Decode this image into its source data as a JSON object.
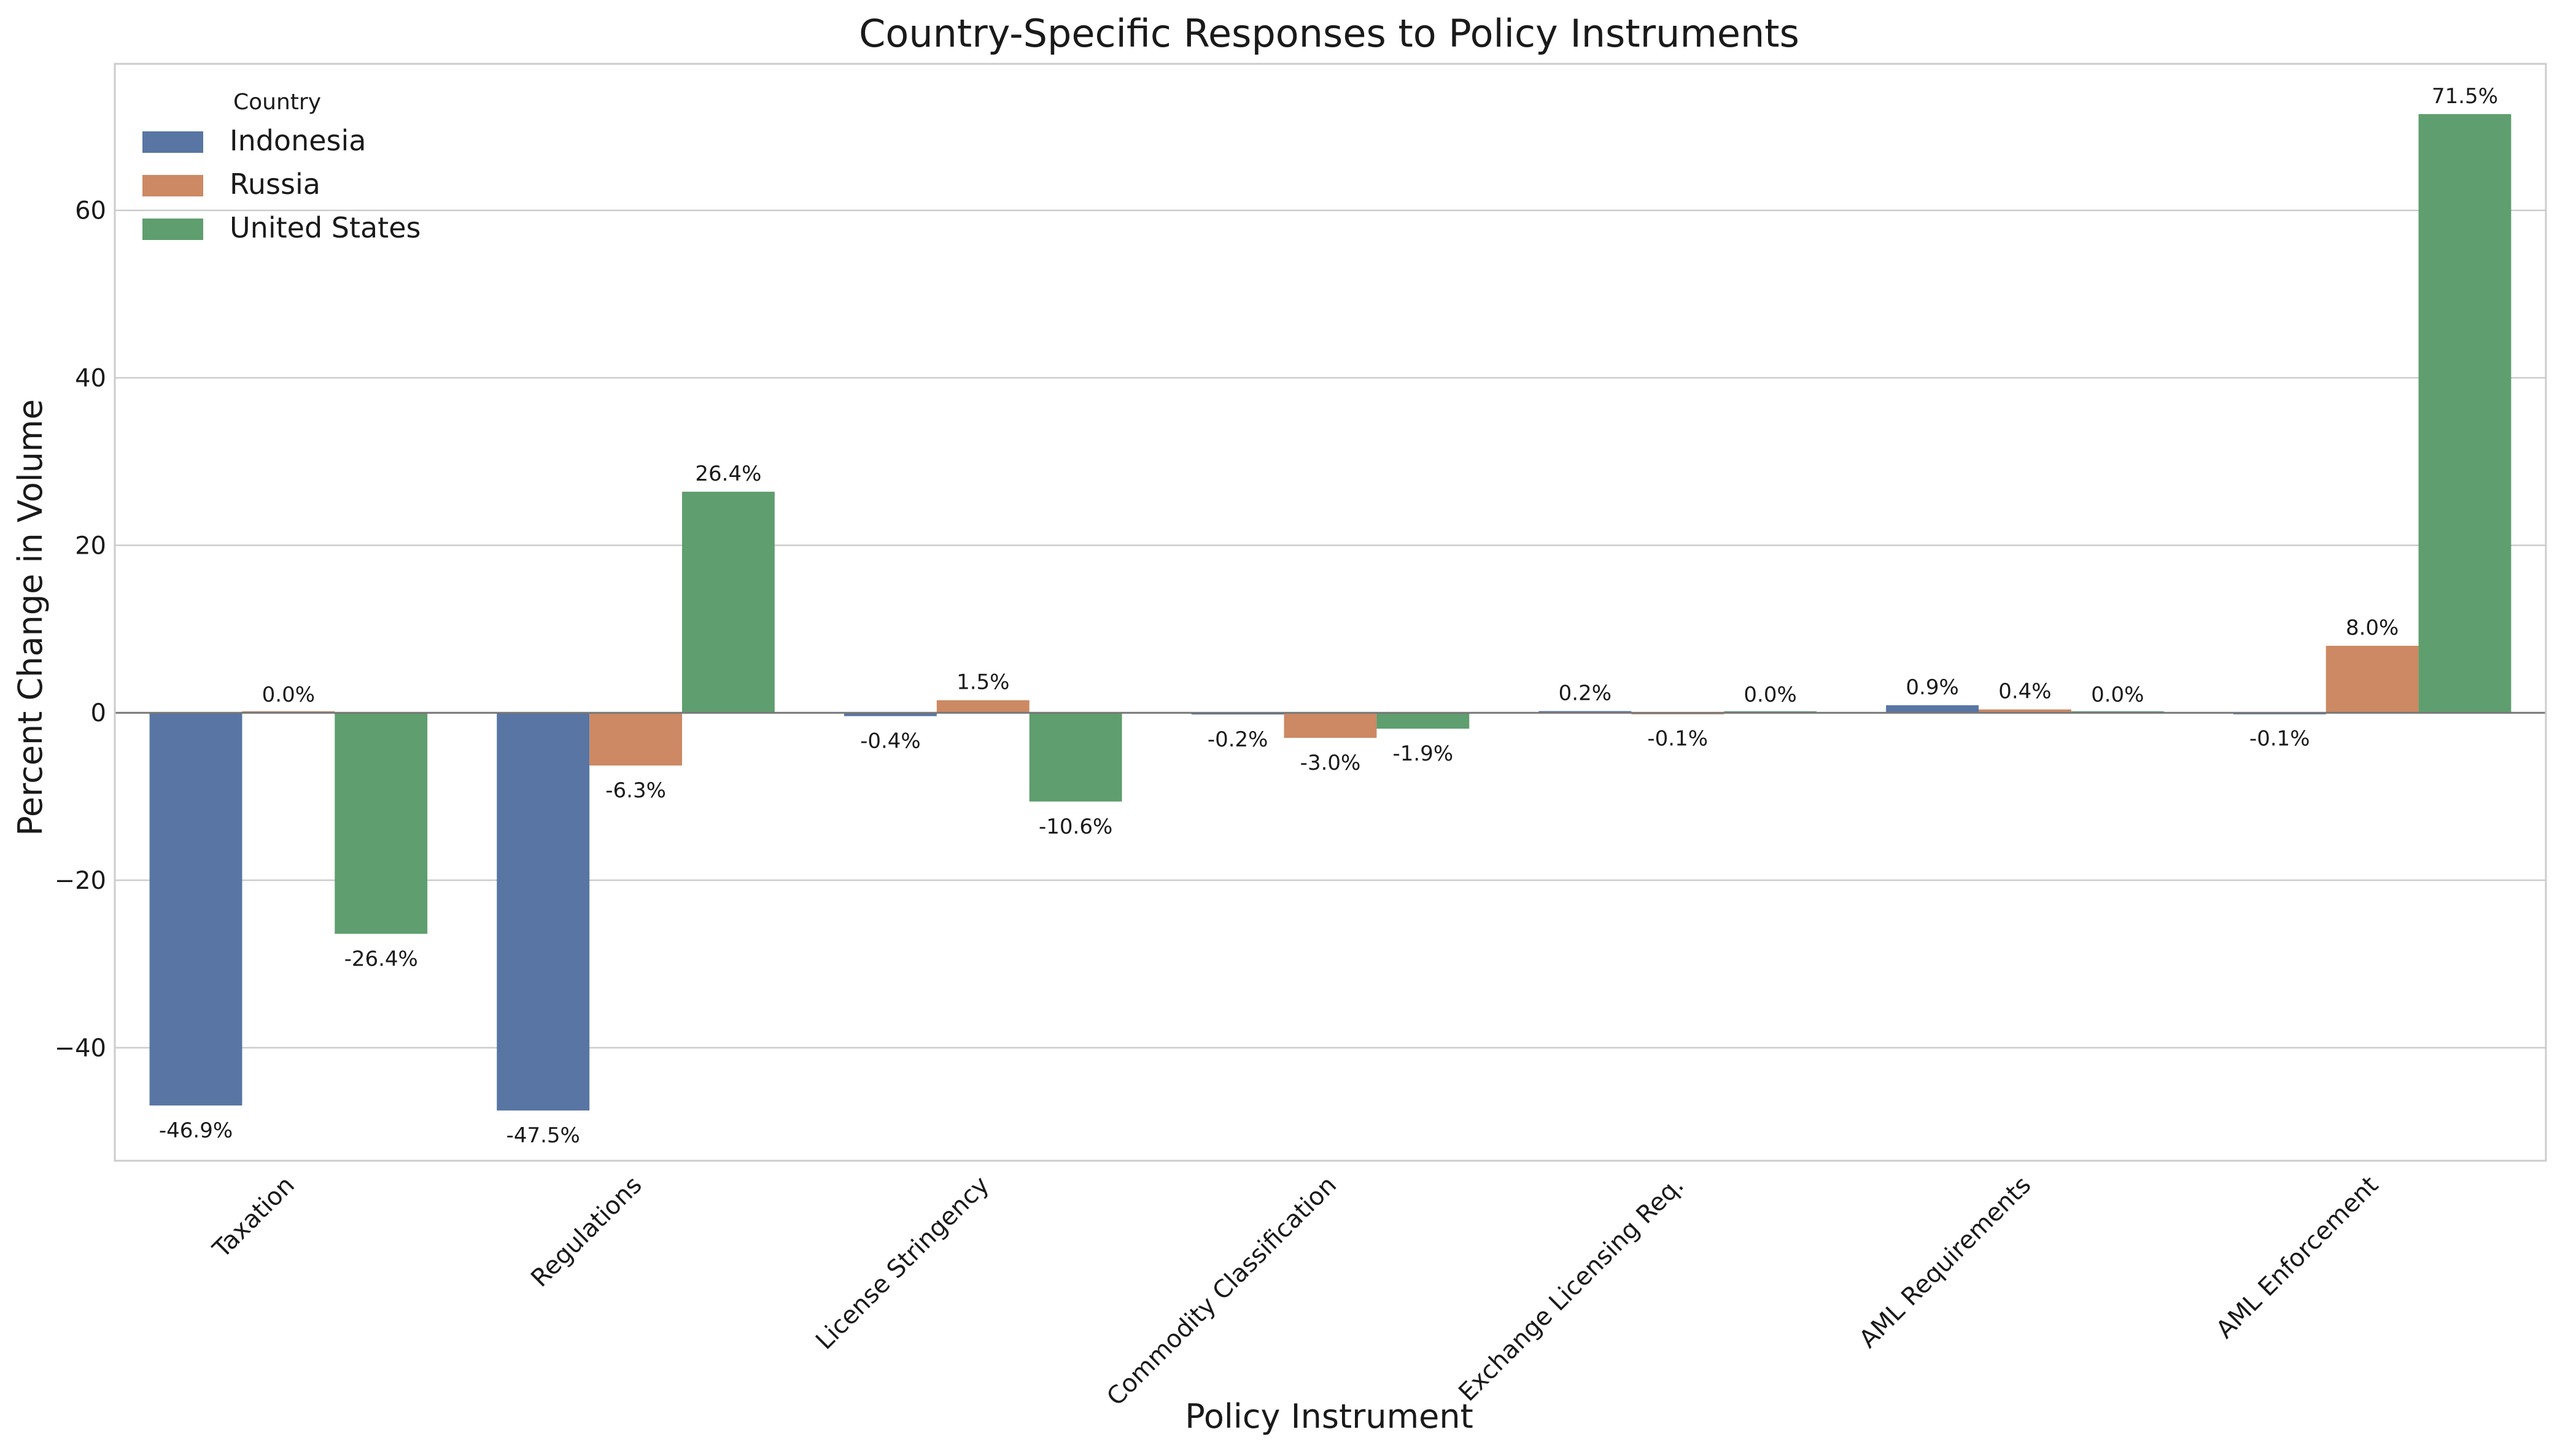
{
  "chart_data": {
    "type": "bar",
    "title": "Country-Specific Responses to Policy Instruments",
    "xlabel": "Policy Instrument",
    "ylabel": "Percent Change in Volume",
    "ylim": [
      -53.5,
      77.5
    ],
    "yticks": [
      -40,
      -20,
      0,
      20,
      40,
      60
    ],
    "ytick_labels": [
      "−40",
      "−20",
      "0",
      "20",
      "40",
      "60"
    ],
    "grid": true,
    "legend": {
      "title": "Country",
      "placement": "top-left"
    },
    "categories": [
      "Taxation",
      "Regulations",
      "License Stringency",
      "Commodity Classification",
      "Exchange Licensing Req.",
      "AML Requirements",
      "AML Enforcement"
    ],
    "series": [
      {
        "name": "Indonesia",
        "color": "#5875a4",
        "values": [
          -46.9,
          -47.5,
          -0.4,
          -0.2,
          0.2,
          0.9,
          -0.1
        ],
        "labels": [
          "-46.9%",
          "-47.5%",
          "-0.4%",
          "-0.2%",
          "0.2%",
          "0.9%",
          "-0.1%"
        ]
      },
      {
        "name": "Russia",
        "color": "#cc8963",
        "values": [
          0.0,
          -6.3,
          1.5,
          -3.0,
          -0.1,
          0.4,
          8.0
        ],
        "labels": [
          "0.0%",
          "-6.3%",
          "1.5%",
          "-3.0%",
          "-0.1%",
          "0.4%",
          "8.0%"
        ]
      },
      {
        "name": "United States",
        "color": "#5f9e6e",
        "values": [
          -26.4,
          26.4,
          -10.6,
          -1.9,
          0.0,
          0.0,
          71.5
        ],
        "labels": [
          "-26.4%",
          "26.4%",
          "-10.6%",
          "-1.9%",
          "0.0%",
          "0.0%",
          "71.5%"
        ]
      }
    ]
  }
}
